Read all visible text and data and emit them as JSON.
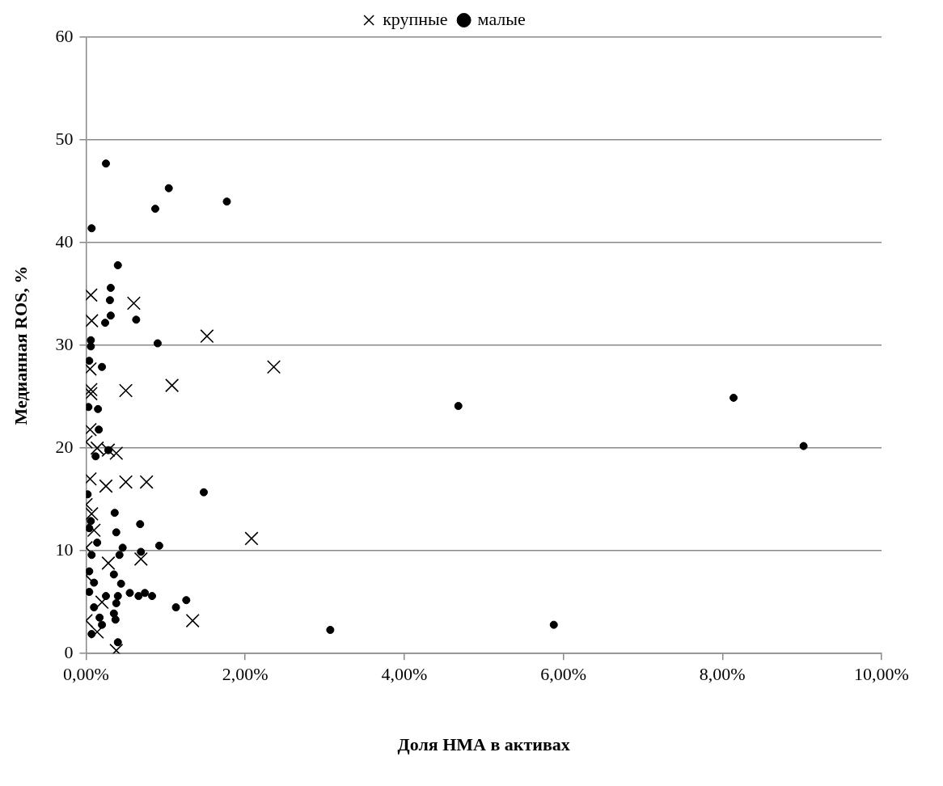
{
  "chart_data": {
    "type": "scatter",
    "xlabel": "Доля НМА в активах",
    "ylabel": "Медианная ROS, %",
    "xlim": [
      0,
      10
    ],
    "xticks": [
      {
        "value": 0,
        "label": "0,00%"
      },
      {
        "value": 2,
        "label": "2,00%"
      },
      {
        "value": 4,
        "label": "4,00%"
      },
      {
        "value": 6,
        "label": "6,00%"
      },
      {
        "value": 8,
        "label": "8,00%"
      },
      {
        "value": 10,
        "label": "10,00%"
      }
    ],
    "ylim": [
      0,
      60
    ],
    "yticks": [
      0,
      10,
      20,
      30,
      40,
      50,
      60
    ],
    "grid": "y",
    "legend": "top",
    "series": [
      {
        "name": "крупные",
        "color": "#000000",
        "marker": "cross",
        "x": [
          0.06,
          0.07,
          0.6,
          1.52,
          2.36,
          0.05,
          0.06,
          0.5,
          1.08,
          0.06,
          0.0,
          0.14,
          0.28,
          0.38,
          0.05,
          0.25,
          0.5,
          0.76,
          2.08,
          0.69,
          1.34,
          0.38,
          0.0,
          0.07,
          0.0,
          0.28,
          0.0,
          0.0,
          0.14,
          0.1,
          0.2,
          0.05
        ],
        "values": [
          34.9,
          32.4,
          34.1,
          30.9,
          27.9,
          27.7,
          25.7,
          25.6,
          26.1,
          25.3,
          20.6,
          20.0,
          19.8,
          19.5,
          21.8,
          16.3,
          16.7,
          16.7,
          11.2,
          9.2,
          3.2,
          0.3,
          14.5,
          13.6,
          10.3,
          8.8,
          7.6,
          3.2,
          2.1,
          12.0,
          5.0,
          17.0
        ]
      },
      {
        "name": "малые",
        "color": "#000000",
        "marker": "circle",
        "x": [
          0.25,
          1.04,
          0.87,
          1.77,
          0.07,
          0.4,
          0.31,
          0.3,
          0.31,
          0.24,
          0.63,
          0.06,
          0.06,
          0.9,
          0.04,
          0.2,
          0.03,
          0.15,
          0.16,
          4.68,
          8.14,
          9.02,
          3.07,
          5.88,
          1.48,
          0.36,
          0.68,
          0.38,
          0.92,
          0.46,
          0.69,
          0.42,
          0.35,
          0.44,
          0.55,
          0.66,
          0.74,
          0.83,
          0.4,
          0.38,
          0.25,
          1.26,
          1.13,
          0.35,
          0.37,
          0.4,
          0.02,
          0.06,
          0.04,
          0.14,
          0.07,
          0.04,
          0.1,
          0.04,
          0.1,
          0.17,
          0.07,
          0.2,
          0.12,
          0.28
        ],
        "values": [
          47.7,
          45.3,
          43.3,
          44.0,
          41.4,
          37.8,
          35.6,
          34.4,
          32.9,
          32.2,
          32.5,
          30.5,
          29.9,
          30.2,
          28.5,
          27.9,
          24.0,
          23.8,
          21.8,
          24.1,
          24.9,
          20.2,
          2.3,
          2.8,
          15.7,
          13.7,
          12.6,
          11.8,
          10.5,
          10.3,
          9.9,
          9.6,
          7.7,
          6.8,
          5.9,
          5.6,
          5.9,
          5.6,
          5.6,
          4.9,
          5.6,
          5.2,
          4.5,
          3.9,
          3.3,
          1.1,
          15.5,
          12.9,
          12.2,
          10.8,
          9.6,
          8.0,
          6.9,
          6.0,
          4.5,
          3.5,
          1.9,
          2.8,
          19.2,
          19.8
        ]
      }
    ]
  }
}
